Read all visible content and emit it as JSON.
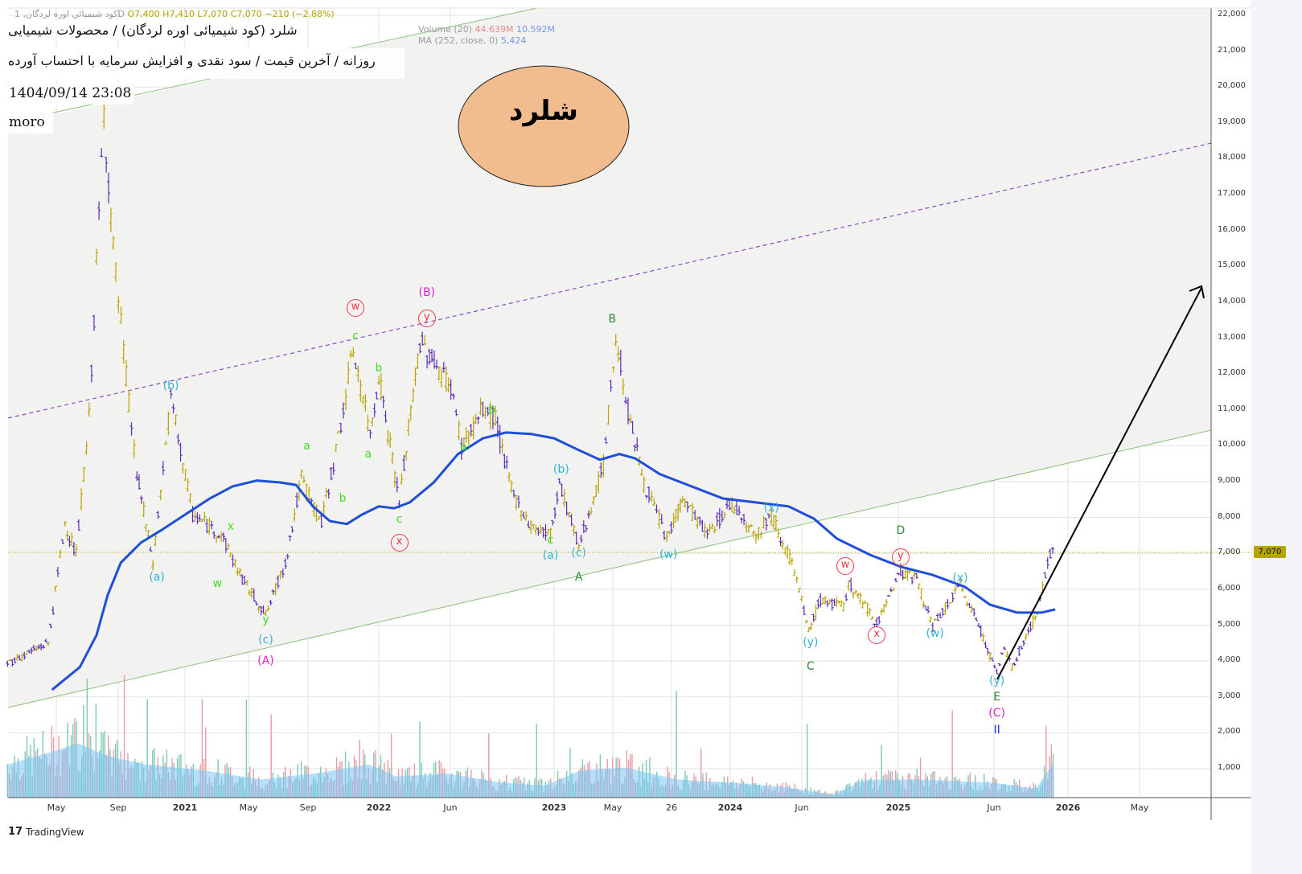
{
  "legend": {
    "symbol": "كود شيميائي اوره لردگان, 1D",
    "open": "O7,400",
    "high": "H7,410",
    "low": "L7,070",
    "close": "C7,070",
    "change": "−210 (−2.88%)",
    "volume_label": "Volume (20)",
    "volume_value_1": "44.639M",
    "volume_value_2": "10.592M",
    "ma_label": "MA (252, close, 0)",
    "ma_value": "5,424"
  },
  "notes": {
    "title": "شلرد (کود شیمیائی اوره لردگان) / محصولات شیمیایی",
    "subtitle": "روزانه / آخرین قیمت / سود نقدی و افزایش سرمایه با احتساب آورده",
    "datetime": "1404/09/14 23:08",
    "author": "moro",
    "ellipse_text": "شلرد"
  },
  "branding": {
    "logo": "TradingView",
    "logo_mark": "17"
  },
  "colors": {
    "up": "#b8a300",
    "down": "#5a2bb8",
    "ma": "#1e4fd8",
    "channel": "#8cc07a",
    "midline": "#8a4fc0",
    "last_price_bg": "#b5a500"
  },
  "chart_data": {
    "type": "line",
    "title": "شلرد 1D",
    "ylabel": "Price",
    "ylim": [
      0,
      22000
    ],
    "y_ticks": [
      1000,
      2000,
      3000,
      4000,
      5000,
      6000,
      7000,
      8000,
      9000,
      10000,
      11000,
      12000,
      13000,
      14000,
      15000,
      16000,
      17000,
      18000,
      19000,
      20000,
      21000,
      22000
    ],
    "y_tick_labels": [
      "1,000",
      "2,000",
      "3,000",
      "4,000",
      "5,000",
      "6,000",
      "7,000",
      "8,000",
      "9,000",
      "10,000",
      "11,000",
      "12,000",
      "13,000",
      "14,000",
      "15,000",
      "16,000",
      "17,000",
      "18,000",
      "19,000",
      "20,000",
      "21,000",
      "22,000"
    ],
    "x_ticks": [
      {
        "label": "May",
        "t": 2020.333
      },
      {
        "label": "Sep",
        "t": 2020.667
      },
      {
        "label": "2021",
        "t": 2021.0,
        "year": true
      },
      {
        "label": "May",
        "t": 2021.333
      },
      {
        "label": "Sep",
        "t": 2021.667
      },
      {
        "label": "2022",
        "t": 2022.0,
        "year": true
      },
      {
        "label": "Jun",
        "t": 2022.417
      },
      {
        "label": "2023",
        "t": 2023.0,
        "year": true
      },
      {
        "label": "May",
        "t": 2023.333
      },
      {
        "label": "26",
        "t": 2023.667
      },
      {
        "label": "2024",
        "t": 2024.0,
        "year": true
      },
      {
        "label": "Jun",
        "t": 2024.417
      },
      {
        "label": "2025",
        "t": 2025.0,
        "year": true
      },
      {
        "label": "Jun",
        "t": 2025.417
      },
      {
        "label": "2026",
        "t": 2026.0,
        "year": true
      },
      {
        "label": "May",
        "t": 2026.333
      }
    ],
    "last_price": 7070,
    "last_price_label": "7,070",
    "price": [
      [
        2020.07,
        3940
      ],
      [
        2020.29,
        4500
      ],
      [
        2020.38,
        7860
      ],
      [
        2020.44,
        6960
      ],
      [
        2020.51,
        10770
      ],
      [
        2020.59,
        19290
      ],
      [
        2020.64,
        15480
      ],
      [
        2020.72,
        11220
      ],
      [
        2020.76,
        9200
      ],
      [
        2020.84,
        6740
      ],
      [
        2020.93,
        11330
      ],
      [
        2021.04,
        8080
      ],
      [
        2021.19,
        7520
      ],
      [
        2021.3,
        6290
      ],
      [
        2021.43,
        5280
      ],
      [
        2021.54,
        6740
      ],
      [
        2021.63,
        9090
      ],
      [
        2021.73,
        7860
      ],
      [
        2021.81,
        10210
      ],
      [
        2021.88,
        12680
      ],
      [
        2021.96,
        10320
      ],
      [
        2022.0,
        12000
      ],
      [
        2022.12,
        8420
      ],
      [
        2022.24,
        12900
      ],
      [
        2022.42,
        11670
      ],
      [
        2022.48,
        10000
      ],
      [
        2022.6,
        11000
      ],
      [
        2022.67,
        10770
      ],
      [
        2022.76,
        8750
      ],
      [
        2022.87,
        7750
      ],
      [
        2022.98,
        7520
      ],
      [
        2023.03,
        8980
      ],
      [
        2023.14,
        7190
      ],
      [
        2023.28,
        9420
      ],
      [
        2023.35,
        13010
      ],
      [
        2023.42,
        11000
      ],
      [
        2023.51,
        8980
      ],
      [
        2023.64,
        7410
      ],
      [
        2023.73,
        8530
      ],
      [
        2023.87,
        7520
      ],
      [
        2024.01,
        8420
      ],
      [
        2024.15,
        7520
      ],
      [
        2024.24,
        8080
      ],
      [
        2024.36,
        6740
      ],
      [
        2024.46,
        4830
      ],
      [
        2024.53,
        5720
      ],
      [
        2024.67,
        5500
      ],
      [
        2024.7,
        6170
      ],
      [
        2024.87,
        5060
      ],
      [
        2025.01,
        6520
      ],
      [
        2025.08,
        6290
      ],
      [
        2025.15,
        4940
      ],
      [
        2025.27,
        6100
      ],
      [
        2025.34,
        5170
      ],
      [
        2025.44,
        3650
      ],
      [
        2025.5,
        4380
      ],
      [
        2025.56,
        3820
      ],
      [
        2025.76,
        5390
      ],
      [
        2025.86,
        6960
      ],
      [
        2025.88,
        7230
      ],
      [
        2025.89,
        7070
      ]
    ],
    "ma252": [
      [
        2020.31,
        3200
      ],
      [
        2020.46,
        3830
      ],
      [
        2020.55,
        4720
      ],
      [
        2020.61,
        5840
      ],
      [
        2020.68,
        6740
      ],
      [
        2020.78,
        7300
      ],
      [
        2020.88,
        7640
      ],
      [
        2021.0,
        8080
      ],
      [
        2021.13,
        8530
      ],
      [
        2021.25,
        8870
      ],
      [
        2021.38,
        9030
      ],
      [
        2021.51,
        8980
      ],
      [
        2021.6,
        8910
      ],
      [
        2021.69,
        8310
      ],
      [
        2021.77,
        7900
      ],
      [
        2021.85,
        7820
      ],
      [
        2021.92,
        8080
      ],
      [
        2022.0,
        8310
      ],
      [
        2022.09,
        8260
      ],
      [
        2022.18,
        8420
      ],
      [
        2022.32,
        8980
      ],
      [
        2022.46,
        9770
      ],
      [
        2022.6,
        10210
      ],
      [
        2022.73,
        10370
      ],
      [
        2022.87,
        10330
      ],
      [
        2023.0,
        10210
      ],
      [
        2023.14,
        9880
      ],
      [
        2023.26,
        9610
      ],
      [
        2023.37,
        9770
      ],
      [
        2023.46,
        9650
      ],
      [
        2023.6,
        9210
      ],
      [
        2023.78,
        8870
      ],
      [
        2023.96,
        8530
      ],
      [
        2024.15,
        8420
      ],
      [
        2024.34,
        8310
      ],
      [
        2024.49,
        7970
      ],
      [
        2024.63,
        7410
      ],
      [
        2024.83,
        6960
      ],
      [
        2025.01,
        6630
      ],
      [
        2025.15,
        6400
      ],
      [
        2025.29,
        6070
      ],
      [
        2025.4,
        5570
      ],
      [
        2025.6,
        5350
      ],
      [
        2025.79,
        5350
      ],
      [
        2025.9,
        5440
      ]
    ],
    "volume_envelope": [
      [
        2020.07,
        0.55
      ],
      [
        2020.3,
        0.75
      ],
      [
        2020.45,
        0.9
      ],
      [
        2020.6,
        0.7
      ],
      [
        2020.8,
        0.55
      ],
      [
        2021.1,
        0.45
      ],
      [
        2021.4,
        0.3
      ],
      [
        2021.7,
        0.4
      ],
      [
        2021.95,
        0.55
      ],
      [
        2022.1,
        0.35
      ],
      [
        2022.4,
        0.4
      ],
      [
        2022.7,
        0.25
      ],
      [
        2022.95,
        0.2
      ],
      [
        2023.15,
        0.45
      ],
      [
        2023.4,
        0.5
      ],
      [
        2023.7,
        0.3
      ],
      [
        2024.0,
        0.25
      ],
      [
        2024.3,
        0.18
      ],
      [
        2024.6,
        0.05
      ],
      [
        2024.8,
        0.3
      ],
      [
        2025.1,
        0.3
      ],
      [
        2025.4,
        0.25
      ],
      [
        2025.75,
        0.15
      ],
      [
        2025.89,
        0.6
      ]
    ],
    "wave_labels": [
      {
        "text": "(b)",
        "color": "#33b4d4",
        "t": 2020.93,
        "p": 11670
      },
      {
        "text": "(a)",
        "color": "#33b4d4",
        "t": 2020.86,
        "p": 6335
      },
      {
        "text": "w",
        "color": "#44dd22",
        "t": 2021.17,
        "p": 6160
      },
      {
        "text": "x",
        "color": "#44dd22",
        "t": 2021.24,
        "p": 7750
      },
      {
        "text": "y",
        "color": "#44dd22",
        "t": 2021.43,
        "p": 5150
      },
      {
        "text": "(c)",
        "color": "#33b4d4",
        "t": 2021.43,
        "p": 4590
      },
      {
        "text": "(A)",
        "color": "#e020d0",
        "t": 2021.43,
        "p": 4005
      },
      {
        "text": "a",
        "color": "#44dd22",
        "t": 2021.66,
        "p": 9990
      },
      {
        "text": "b",
        "color": "#44dd22",
        "t": 2021.83,
        "p": 8530
      },
      {
        "text": "c",
        "color": "#44dd22",
        "t": 2021.89,
        "p": 13060
      },
      {
        "text": "w",
        "color": "#f23645",
        "t": 2021.89,
        "p": 13840,
        "circled": true
      },
      {
        "text": "a",
        "color": "#44dd22",
        "t": 2021.95,
        "p": 9760
      },
      {
        "text": "b",
        "color": "#44dd22",
        "t": 2022.0,
        "p": 12160
      },
      {
        "text": "c",
        "color": "#44dd22",
        "t": 2022.12,
        "p": 7950
      },
      {
        "text": "x",
        "color": "#f23645",
        "t": 2022.12,
        "p": 7300,
        "circled": true
      },
      {
        "text": "(B)",
        "color": "#e020d0",
        "t": 2022.28,
        "p": 14270
      },
      {
        "text": "y",
        "color": "#f23645",
        "t": 2022.28,
        "p": 13550,
        "circled": true
      },
      {
        "text": "a",
        "color": "#44dd22",
        "t": 2022.49,
        "p": 9970
      },
      {
        "text": "b",
        "color": "#44dd22",
        "t": 2022.65,
        "p": 11000
      },
      {
        "text": "c",
        "color": "#44dd22",
        "t": 2022.98,
        "p": 7370
      },
      {
        "text": "(a)",
        "color": "#33b4d4",
        "t": 2022.98,
        "p": 6940
      },
      {
        "text": "(b)",
        "color": "#33b4d4",
        "t": 2023.04,
        "p": 9340
      },
      {
        "text": "(c)",
        "color": "#33b4d4",
        "t": 2023.14,
        "p": 7010
      },
      {
        "text": "A",
        "color": "#2e8b3a",
        "t": 2023.14,
        "p": 6340
      },
      {
        "text": "B",
        "color": "#2e8b3a",
        "t": 2023.33,
        "p": 13530
      },
      {
        "text": "(w)",
        "color": "#33b4d4",
        "t": 2023.65,
        "p": 6960
      },
      {
        "text": "(x)",
        "color": "#33b4d4",
        "t": 2024.24,
        "p": 8260
      },
      {
        "text": "(y)",
        "color": "#33b4d4",
        "t": 2024.47,
        "p": 4520
      },
      {
        "text": "C",
        "color": "#2e8b3a",
        "t": 2024.47,
        "p": 3850
      },
      {
        "text": "w",
        "color": "#f23645",
        "t": 2024.68,
        "p": 6650,
        "circled": true
      },
      {
        "text": "x",
        "color": "#f23645",
        "t": 2024.87,
        "p": 4720,
        "circled": true
      },
      {
        "text": "D",
        "color": "#2e8b3a",
        "t": 2025.01,
        "p": 7640
      },
      {
        "text": "y",
        "color": "#f23645",
        "t": 2025.01,
        "p": 6900,
        "circled": true
      },
      {
        "text": "(w)",
        "color": "#33b4d4",
        "t": 2025.16,
        "p": 4770
      },
      {
        "text": "(x)",
        "color": "#33b4d4",
        "t": 2025.27,
        "p": 6310
      },
      {
        "text": "(y)",
        "color": "#33b4d4",
        "t": 2025.44,
        "p": 3440
      },
      {
        "text": "E",
        "color": "#2e8b3a",
        "t": 2025.44,
        "p": 3000
      },
      {
        "text": "(C)",
        "color": "#e020d0",
        "t": 2025.44,
        "p": 2550
      },
      {
        "text": "II",
        "color": "#2233cc",
        "t": 2025.44,
        "p": 2080
      }
    ]
  }
}
